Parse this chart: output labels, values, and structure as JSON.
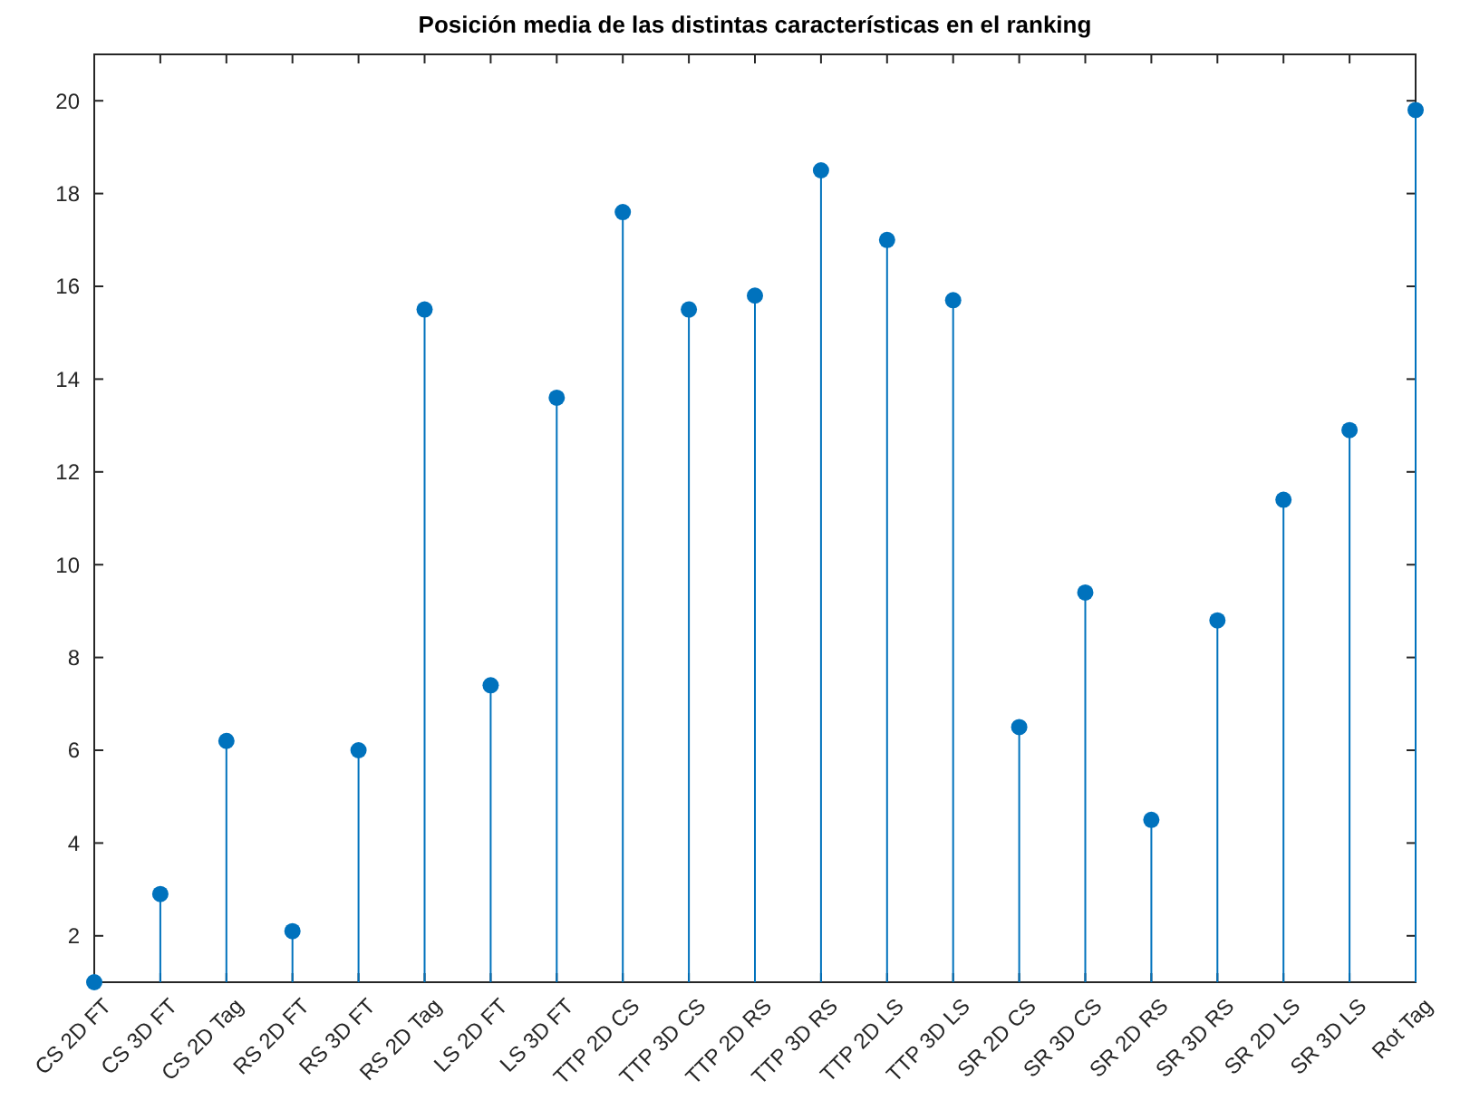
{
  "chart_data": {
    "type": "lollipop",
    "title": "Posición media de las distintas características en el ranking",
    "categories": [
      "CS 2D FT",
      "CS 3D FT",
      "CS 2D Tag",
      "RS 2D FT",
      "RS 3D FT",
      "RS 2D Tag",
      "LS 2D FT",
      "LS 3D FT",
      "TTP 2D CS",
      "TTP 3D CS",
      "TTP 2D RS",
      "TTP 3D RS",
      "TTP 2D LS",
      "TTP 3D LS",
      "SR 2D CS",
      "SR 3D CS",
      "SR 2D RS",
      "SR 3D RS",
      "SR 2D LS",
      "SR 3D LS",
      "Rot Tag"
    ],
    "values": [
      1.0,
      2.9,
      6.2,
      2.1,
      6.0,
      15.5,
      7.4,
      13.6,
      17.6,
      15.5,
      15.8,
      18.5,
      17.0,
      15.7,
      6.5,
      9.4,
      4.5,
      8.8,
      11.4,
      12.9,
      19.8
    ],
    "color": "#0072bd",
    "marker": "circle",
    "ylim": [
      1,
      21
    ],
    "yticks": [
      2,
      4,
      6,
      8,
      10,
      12,
      14,
      16,
      18,
      20
    ],
    "grid": false
  }
}
